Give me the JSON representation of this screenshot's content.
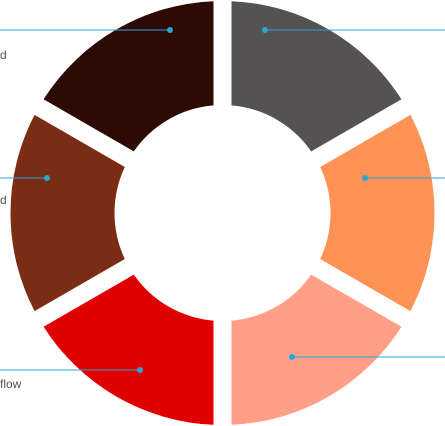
{
  "diagram": {
    "segments": [
      {
        "name": "top-right",
        "color": "#545252"
      },
      {
        "name": "right",
        "color": "#FF9254"
      },
      {
        "name": "bottom-right",
        "color": "#FF9F88"
      },
      {
        "name": "bottom-left",
        "color": "#E00000"
      },
      {
        "name": "left",
        "color": "#7A2C14"
      },
      {
        "name": "top-left",
        "color": "#2E0A05"
      }
    ],
    "labels": {
      "top_left": "d",
      "left": "d",
      "bottom_left": "flow"
    },
    "leader_color": "#29A6D6"
  }
}
